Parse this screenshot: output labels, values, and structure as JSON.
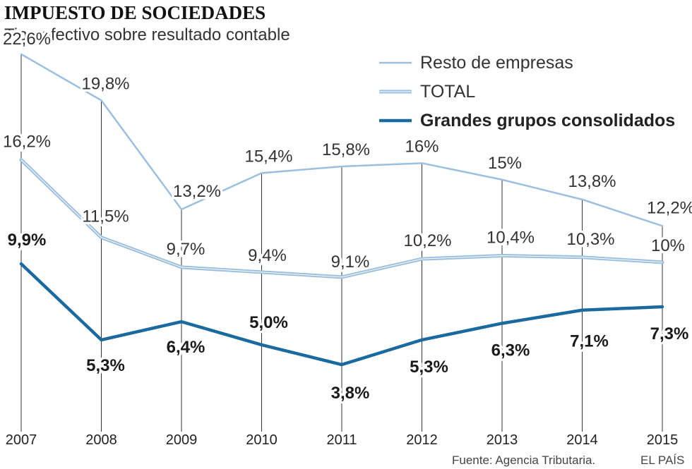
{
  "title": "IMPUESTO DE SOCIEDADES",
  "subtitle": "Tipo efectivo sobre resultado contable",
  "source": "Fuente: Agencia Tributaria.",
  "credit": "EL PAÍS",
  "colors": {
    "resto": "#9cbfdf",
    "total": "#9cbfdf",
    "grandes": "#1a6aa0",
    "gridline": "#333333"
  },
  "chart_data": {
    "type": "line",
    "title": "IMPUESTO DE SOCIEDADES",
    "subtitle": "Tipo efectivo sobre resultado contable",
    "xlabel": "",
    "ylabel": "",
    "ylim": [
      0,
      24
    ],
    "x": [
      "2007",
      "2008",
      "2009",
      "2010",
      "2011",
      "2012",
      "2013",
      "2014",
      "2015"
    ],
    "series": [
      {
        "name": "Resto de empresas",
        "values": [
          22.6,
          19.8,
          13.2,
          15.4,
          15.8,
          16,
          15,
          13.8,
          12.2
        ],
        "labels": [
          "22,6%",
          "19,8%",
          "13,2%",
          "15,4%",
          "15,8%",
          "16%",
          "15%",
          "13,8%",
          "12,2%"
        ]
      },
      {
        "name": "TOTAL",
        "values": [
          16.2,
          11.5,
          9.7,
          9.4,
          9.1,
          10.2,
          10.4,
          10.3,
          10
        ],
        "labels": [
          "16,2%",
          "11,5%",
          "9,7%",
          "9,4%",
          "9,1%",
          "10,2%",
          "10,4%",
          "10,3%",
          "10%"
        ]
      },
      {
        "name": "Grandes grupos consolidados",
        "values": [
          9.9,
          5.3,
          6.4,
          5.0,
          3.8,
          5.3,
          6.3,
          7.1,
          7.3
        ],
        "labels": [
          "9,9%",
          "5,3%",
          "6,4%",
          "5,0%",
          "3,8%",
          "5,3%",
          "6,3%",
          "7,1%",
          "7,3%"
        ]
      }
    ],
    "legend": "top-right"
  }
}
